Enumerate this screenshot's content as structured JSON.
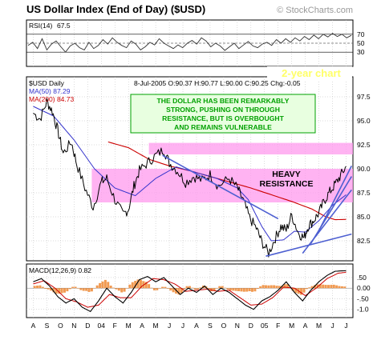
{
  "chart_data": {
    "type": "line",
    "title": "US Dollar Index (End of Day) ($USD)",
    "watermark": "© StockCharts.com",
    "x_labels": [
      "A",
      "S",
      "O",
      "N",
      "D",
      "04",
      "F",
      "M",
      "A",
      "M",
      "J",
      "J",
      "A",
      "S",
      "O",
      "N",
      "D",
      "05",
      "F",
      "M",
      "A",
      "M",
      "J",
      "J"
    ],
    "rsi": {
      "label": "RSI(14)",
      "value_text": "67.5",
      "ylim": [
        0,
        100
      ],
      "ticks": [
        "70",
        "50",
        "30"
      ],
      "tick_values": [
        70,
        50,
        30
      ],
      "values": [
        45,
        52,
        38,
        60,
        35,
        48,
        55,
        42,
        30,
        44,
        50,
        40,
        35,
        52,
        38,
        45,
        58,
        48,
        62,
        52,
        45,
        40,
        55,
        48,
        35,
        42,
        52,
        46,
        60,
        50,
        44,
        38,
        46,
        40,
        50,
        56,
        48,
        62,
        55,
        42,
        50,
        44,
        34,
        42,
        50,
        38,
        46,
        54,
        44,
        40,
        48,
        52,
        45,
        58,
        50,
        60,
        52,
        62,
        55,
        65,
        58,
        68,
        60,
        70,
        64,
        72,
        65,
        70,
        62,
        67.5
      ]
    },
    "main": {
      "ticker_label": "$USD Daily",
      "info_text": "8-Jul-2005 O:90.37 H:90.77 L:90.00 C:90.25 Chg:-0.05",
      "ma50_label": "MA(50) 87.29",
      "ma200_label": "MA(200) 84.73",
      "ylim": [
        80.5,
        99.5
      ],
      "y_ticks": [
        "97.5",
        "95.0",
        "92.5",
        "90.0",
        "87.5",
        "85.0",
        "82.5"
      ],
      "y_tick_values": [
        97.5,
        95.0,
        92.5,
        90.0,
        87.5,
        85.0,
        82.5
      ],
      "price_knots": [
        [
          0,
          95.8
        ],
        [
          0.5,
          95.2
        ],
        [
          1.0,
          97.0
        ],
        [
          1.4,
          96.0
        ],
        [
          1.8,
          94.0
        ],
        [
          2.2,
          91.6
        ],
        [
          2.8,
          92.8
        ],
        [
          3.2,
          90.5
        ],
        [
          3.8,
          88.0
        ],
        [
          4.4,
          86.0
        ],
        [
          5.0,
          88.6
        ],
        [
          5.4,
          89.0
        ],
        [
          6.0,
          86.8
        ],
        [
          6.6,
          85.2
        ],
        [
          7.0,
          85.8
        ],
        [
          7.4,
          88.2
        ],
        [
          7.8,
          89.8
        ],
        [
          8.4,
          90.6
        ],
        [
          9.0,
          91.4
        ],
        [
          9.6,
          92.0
        ],
        [
          10.0,
          90.6
        ],
        [
          10.6,
          89.8
        ],
        [
          11.2,
          88.6
        ],
        [
          11.8,
          89.2
        ],
        [
          12.4,
          88.8
        ],
        [
          13.0,
          89.4
        ],
        [
          13.6,
          88.2
        ],
        [
          14.4,
          89.0
        ],
        [
          15.0,
          88.0
        ],
        [
          15.4,
          86.8
        ],
        [
          15.9,
          84.9
        ],
        [
          16.4,
          83.8
        ],
        [
          16.8,
          82.4
        ],
        [
          17.3,
          81.2
        ],
        [
          17.8,
          82.8
        ],
        [
          18.2,
          84.0
        ],
        [
          18.6,
          83.6
        ],
        [
          19.0,
          85.2
        ],
        [
          19.5,
          83.3
        ],
        [
          19.9,
          82.8
        ],
        [
          20.2,
          84.0
        ],
        [
          20.6,
          84.6
        ],
        [
          21.0,
          85.4
        ],
        [
          21.4,
          86.7
        ],
        [
          21.8,
          87.6
        ],
        [
          22.2,
          88.4
        ],
        [
          22.6,
          89.3
        ],
        [
          23.0,
          90.25
        ]
      ],
      "ma50_knots": [
        [
          0,
          96.5
        ],
        [
          1.5,
          95.5
        ],
        [
          3.0,
          93.0
        ],
        [
          4.5,
          90.0
        ],
        [
          6.0,
          88.0
        ],
        [
          7.5,
          87.2
        ],
        [
          9.0,
          89.0
        ],
        [
          10.5,
          90.2
        ],
        [
          12.0,
          89.6
        ],
        [
          13.5,
          89.0
        ],
        [
          15.0,
          88.0
        ],
        [
          15.8,
          86.8
        ],
        [
          16.8,
          84.0
        ],
        [
          17.5,
          82.5
        ],
        [
          18.4,
          82.6
        ],
        [
          19.2,
          83.5
        ],
        [
          20.0,
          83.4
        ],
        [
          21.0,
          84.6
        ],
        [
          22.0,
          86.2
        ],
        [
          23.0,
          87.3
        ]
      ],
      "ma200_knots": [
        [
          5.5,
          92.8
        ],
        [
          7.0,
          92.2
        ],
        [
          8.5,
          91.0
        ],
        [
          10.0,
          90.3
        ],
        [
          11.5,
          89.8
        ],
        [
          13.0,
          89.2
        ],
        [
          14.5,
          88.6
        ],
        [
          16.0,
          88.0
        ],
        [
          17.5,
          87.3
        ],
        [
          19.0,
          86.6
        ],
        [
          20.5,
          85.8
        ],
        [
          21.5,
          85.0
        ],
        [
          22.2,
          84.7
        ],
        [
          23.0,
          84.73
        ]
      ],
      "resistance_band_upper": [
        91.5,
        92.7
      ],
      "resistance_band_lower": [
        86.5,
        90.0
      ],
      "trendlines": [
        {
          "from": [
            17.1,
            80.9
          ],
          "to": [
            23.4,
            83.2
          ]
        },
        {
          "from": [
            19.8,
            81.2
          ],
          "to": [
            23.4,
            87.8
          ]
        },
        {
          "from": [
            20.4,
            82.2
          ],
          "to": [
            23.4,
            89.2
          ]
        },
        {
          "from": [
            20.8,
            83.0
          ],
          "to": [
            23.4,
            90.3
          ]
        },
        {
          "from": [
            9.5,
            91.4
          ],
          "to": [
            18.0,
            84.8
          ]
        }
      ],
      "annotation": "THE DOLLAR HAS BEEN REMARKABLY STRONG, PUSHING ON THROUGH RESISTANCE, BUT IS OVERBOUGHT AND REMAINS VULNERABLE",
      "annotation_lines": [
        "THE DOLLAR HAS BEEN REMARKABLY",
        "STRONG, PUSHING ON THROUGH",
        "RESISTANCE, BUT IS OVERBOUGHT",
        "AND REMAINS VULNERABLE"
      ],
      "resistance_label": "HEAVY RESISTANCE",
      "resistance_label_lines": [
        "HEAVY",
        "RESISTANCE"
      ],
      "period_label": "2-year chart"
    },
    "macd": {
      "label": "MACD(12,26,9) 0.82",
      "ylim": [
        -1.35,
        1.1
      ],
      "y_ticks": [
        ".50",
        "0.00",
        "-.50",
        "-1.0"
      ],
      "y_tick_values": [
        0.5,
        0.0,
        -0.5,
        -1.0
      ],
      "macd_knots": [
        [
          0,
          0.3
        ],
        [
          0.6,
          0.45
        ],
        [
          1.2,
          0.1
        ],
        [
          1.8,
          -0.4
        ],
        [
          2.4,
          -0.7
        ],
        [
          3.0,
          -0.5
        ],
        [
          3.6,
          -0.9
        ],
        [
          4.2,
          -1.1
        ],
        [
          4.8,
          -0.6
        ],
        [
          5.4,
          0.0
        ],
        [
          6.0,
          -0.4
        ],
        [
          6.6,
          -0.7
        ],
        [
          7.2,
          -0.2
        ],
        [
          7.8,
          0.4
        ],
        [
          8.4,
          0.55
        ],
        [
          9.0,
          0.3
        ],
        [
          9.6,
          0.5
        ],
        [
          10.2,
          0.1
        ],
        [
          10.8,
          -0.3
        ],
        [
          11.4,
          0.0
        ],
        [
          12.0,
          -0.2
        ],
        [
          12.6,
          0.1
        ],
        [
          13.2,
          -0.3
        ],
        [
          13.8,
          0.0
        ],
        [
          14.4,
          -0.2
        ],
        [
          15.0,
          -0.5
        ],
        [
          15.6,
          -0.8
        ],
        [
          16.2,
          -1.0
        ],
        [
          16.8,
          -0.6
        ],
        [
          17.4,
          -0.4
        ],
        [
          18.0,
          -0.1
        ],
        [
          18.6,
          0.3
        ],
        [
          19.2,
          -0.2
        ],
        [
          19.8,
          -0.6
        ],
        [
          20.4,
          -0.1
        ],
        [
          21.0,
          0.3
        ],
        [
          21.6,
          0.6
        ],
        [
          22.2,
          0.8
        ],
        [
          23.0,
          0.82
        ]
      ],
      "signal_knots": [
        [
          0,
          0.2
        ],
        [
          0.8,
          0.35
        ],
        [
          1.6,
          0.0
        ],
        [
          2.4,
          -0.5
        ],
        [
          3.2,
          -0.65
        ],
        [
          4.0,
          -0.9
        ],
        [
          4.8,
          -0.8
        ],
        [
          5.6,
          -0.3
        ],
        [
          6.4,
          -0.45
        ],
        [
          7.2,
          -0.45
        ],
        [
          8.0,
          0.1
        ],
        [
          8.8,
          0.45
        ],
        [
          9.6,
          0.4
        ],
        [
          10.4,
          0.2
        ],
        [
          11.2,
          -0.15
        ],
        [
          12.0,
          -0.1
        ],
        [
          12.8,
          -0.05
        ],
        [
          13.6,
          -0.15
        ],
        [
          14.4,
          -0.1
        ],
        [
          15.2,
          -0.45
        ],
        [
          16.0,
          -0.8
        ],
        [
          16.8,
          -0.75
        ],
        [
          17.6,
          -0.45
        ],
        [
          18.4,
          0.05
        ],
        [
          19.2,
          0.0
        ],
        [
          20.0,
          -0.35
        ],
        [
          20.8,
          0.0
        ],
        [
          21.6,
          0.45
        ],
        [
          22.4,
          0.7
        ],
        [
          23.0,
          0.75
        ]
      ]
    },
    "colors": {
      "price": "#000000",
      "ma50": "#3333cc",
      "ma200": "#cc0000",
      "resistance_band": "#ff99ee",
      "trendline": "#4d5fd1",
      "annotation_text": "#00a000",
      "annotation_bg": "#e8ffe0",
      "macd_line": "#000000",
      "signal_line": "#cc0000",
      "histogram": "#ee8833",
      "period_label": "#ffff66",
      "grid": "#b8b8b8"
    }
  }
}
